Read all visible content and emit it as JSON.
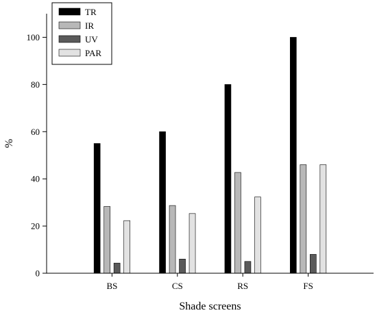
{
  "chart_data": {
    "type": "bar",
    "title": "",
    "xlabel": "Shade screens",
    "ylabel": "%",
    "ylim": [
      0,
      110
    ],
    "yticks": [
      0,
      20,
      40,
      60,
      80,
      100
    ],
    "grid": false,
    "legend": "top-left",
    "categories": [
      "BS",
      "CS",
      "RS",
      "FS"
    ],
    "series": [
      {
        "name": "TR",
        "color": "#000000",
        "values": [
          55,
          60,
          80,
          100
        ]
      },
      {
        "name": "IR",
        "color": "#b8b8b8",
        "values": [
          28.3,
          28.7,
          42.7,
          46
        ]
      },
      {
        "name": "UV",
        "color": "#5a5a5a",
        "values": [
          4.3,
          6,
          5,
          8
        ]
      },
      {
        "name": "PAR",
        "color": "#e2e2e2",
        "values": [
          22.3,
          25.3,
          32.3,
          46
        ]
      }
    ]
  }
}
